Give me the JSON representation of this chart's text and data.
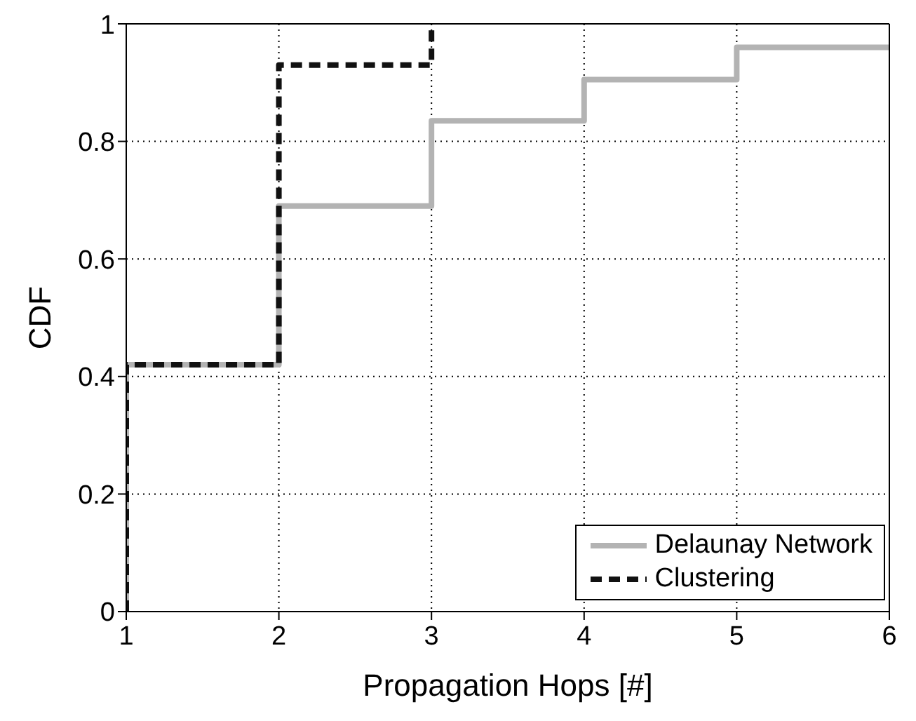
{
  "chart_data": {
    "type": "step",
    "xlabel": "Propagation Hops [#]",
    "ylabel": "CDF",
    "xlim": [
      1,
      6
    ],
    "xticks": [
      1,
      2,
      3,
      4,
      5,
      6
    ],
    "ylim": [
      0,
      1
    ],
    "yticks": [
      0,
      0.2,
      0.4,
      0.6,
      0.8,
      1
    ],
    "grid": true,
    "legend": "bottom right",
    "marker": "none",
    "series": [
      {
        "name": "Delaunay Network",
        "color": "#b3b3b3",
        "line_style": "solid",
        "x": [
          1,
          1,
          2,
          3,
          4,
          5,
          6
        ],
        "values": [
          0,
          0.42,
          0.69,
          0.835,
          0.905,
          0.96,
          0.96
        ]
      },
      {
        "name": "Clustering",
        "color": "#111111",
        "line_style": "dashed",
        "x": [
          1,
          1,
          2,
          3,
          3
        ],
        "values": [
          0,
          0.42,
          0.93,
          0.93,
          1
        ]
      }
    ]
  }
}
